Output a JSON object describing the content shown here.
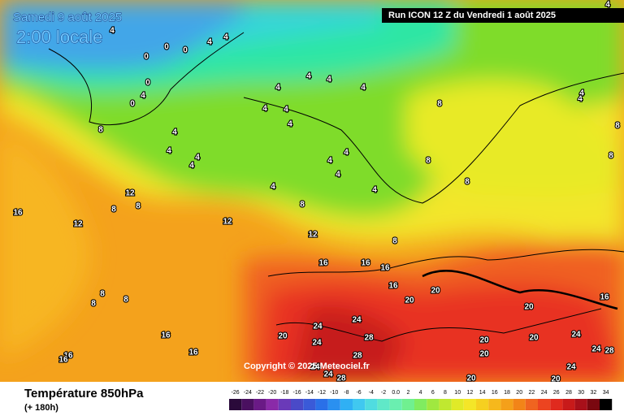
{
  "header": {
    "date": "Samedi 9 août 2025",
    "time": "2:00 locale",
    "run": "Run ICON 12 Z du Vendredi 1 août 2025",
    "copyright": "Copyright © 2025 Meteociel.fr"
  },
  "footer": {
    "title": "Température 850hPa",
    "lead": "(+ 180h)"
  },
  "scale": [
    "-26",
    "-24",
    "-22",
    "-20",
    "-18",
    "-16",
    "-14",
    "-12",
    "-10",
    "-8",
    "-6",
    "-4",
    "-2",
    "0.0",
    "2",
    "4",
    "6",
    "8",
    "10",
    "12",
    "14",
    "16",
    "18",
    "20",
    "22",
    "24",
    "26",
    "28",
    "30",
    "32",
    "34"
  ],
  "contour_labels": [
    "4",
    "4",
    "4",
    "0",
    "0",
    "0",
    "0",
    "0",
    "4",
    "8",
    "4",
    "4",
    "4",
    "4",
    "4",
    "4",
    "4",
    "4",
    "4",
    "4",
    "4",
    "4",
    "4",
    "4",
    "4",
    "4",
    "8",
    "8",
    "8",
    "8",
    "12",
    "8",
    "8",
    "16",
    "12",
    "12",
    "12",
    "8",
    "16",
    "16",
    "16",
    "16",
    "20",
    "20",
    "20",
    "16",
    "8",
    "8",
    "8",
    "16",
    "16",
    "16",
    "16",
    "20",
    "24",
    "24",
    "24",
    "28",
    "28",
    "20",
    "20",
    "20",
    "24",
    "24",
    "28",
    "24",
    "20",
    "20",
    "24",
    "28",
    "24",
    "4",
    "4",
    "8",
    "8",
    "4"
  ]
}
